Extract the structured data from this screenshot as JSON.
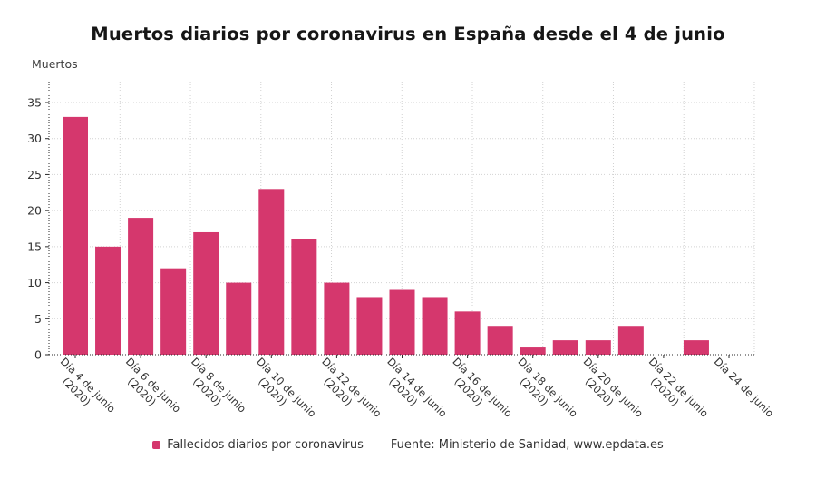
{
  "title": "Muertos diarios por coronavirus en España desde el 4 de junio",
  "y_axis_title": "Muertos",
  "legend": {
    "label": "Fallecidos diarios por coronavirus",
    "marker_color": "#d5376d"
  },
  "source": "Fuente: Ministerio de Sanidad, www.epdata.es",
  "colors": {
    "bar": "#d5376d",
    "axis": "#2a2a2a",
    "gridline": "#d2d2d2",
    "tick_label": "#333333",
    "title": "#161616"
  },
  "chart_data": {
    "type": "bar",
    "title": "Muertos diarios por coronavirus en España desde el 4 de junio",
    "xlabel": "",
    "ylabel": "Muertos",
    "ylim": [
      0,
      35
    ],
    "yticks": [
      0,
      5,
      10,
      15,
      20,
      25,
      30,
      35
    ],
    "grid": true,
    "legend_position": "bottom",
    "x_period": "4 de junio 2020 - 24 de junio 2020, un valor por día",
    "categories": [
      "Día 4 de junio (2020)",
      "Día 5 de junio (2020)",
      "Día 6 de junio (2020)",
      "Día 7 de junio (2020)",
      "Día 8 de junio (2020)",
      "Día 9 de junio (2020)",
      "Día 10 de junio (2020)",
      "Día 11 de junio (2020)",
      "Día 12 de junio (2020)",
      "Día 13 de junio (2020)",
      "Día 14 de junio (2020)",
      "Día 15 de junio (2020)",
      "Día 16 de junio (2020)",
      "Día 17 de junio (2020)",
      "Día 18 de junio (2020)",
      "Día 19 de junio (2020)",
      "Día 20 de junio (2020)",
      "Día 21 de junio (2020)",
      "Día 22 de junio (2020)",
      "Día 23 de junio (2020)",
      "Día 24 de junio (2020)"
    ],
    "series": [
      {
        "name": "Fallecidos diarios por coronavirus",
        "values": [
          33,
          15,
          19,
          12,
          17,
          10,
          23,
          16,
          10,
          8,
          9,
          8,
          6,
          4,
          1,
          2,
          2,
          4,
          0,
          2,
          0
        ]
      }
    ],
    "visible_x_ticks": [
      {
        "index": 0,
        "line1": "Día 4 de junio",
        "line2": "(2020)"
      },
      {
        "index": 2,
        "line1": "Día 6 de junio",
        "line2": "(2020)"
      },
      {
        "index": 4,
        "line1": "Día 8 de junio",
        "line2": "(2020)"
      },
      {
        "index": 6,
        "line1": "Día 10 de junio",
        "line2": "(2020)"
      },
      {
        "index": 8,
        "line1": "Día 12 de junio",
        "line2": "(2020)"
      },
      {
        "index": 10,
        "line1": "Día 14 de junio",
        "line2": "(2020)"
      },
      {
        "index": 12,
        "line1": "Día 16 de junio",
        "line2": "(2020)"
      },
      {
        "index": 14,
        "line1": "Día 18 de junio",
        "line2": "(2020)"
      },
      {
        "index": 16,
        "line1": "Día 20 de junio",
        "line2": "(2020)"
      },
      {
        "index": 18,
        "line1": "Día 22 de junio",
        "line2": "(2020)"
      },
      {
        "index": 20,
        "line1": "Día 24 de junio",
        "line2": ""
      }
    ]
  }
}
